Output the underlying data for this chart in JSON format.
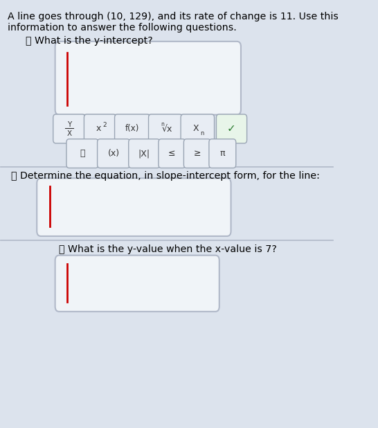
{
  "background_color": "#dce3ed",
  "text_color": "#000000",
  "title_line1": "A line goes through (10, 129), and its rate of change is 11. Use this",
  "title_line2": "information to answer the following questions.",
  "q1_text": "What is the y-intercept?",
  "q2_text": "Determine the equation, in slope-intercept form, for the line:",
  "q3_text": "What is the y-value when the x-value is 7?",
  "divider_color": "#b0b8c8",
  "box_edge_color": "#b0b8c8",
  "box_face_color": "#f0f4f8",
  "button_face_color": "#e8edf4",
  "button_edge_color": "#9aa5b4",
  "cursor_color": "#cc0000"
}
